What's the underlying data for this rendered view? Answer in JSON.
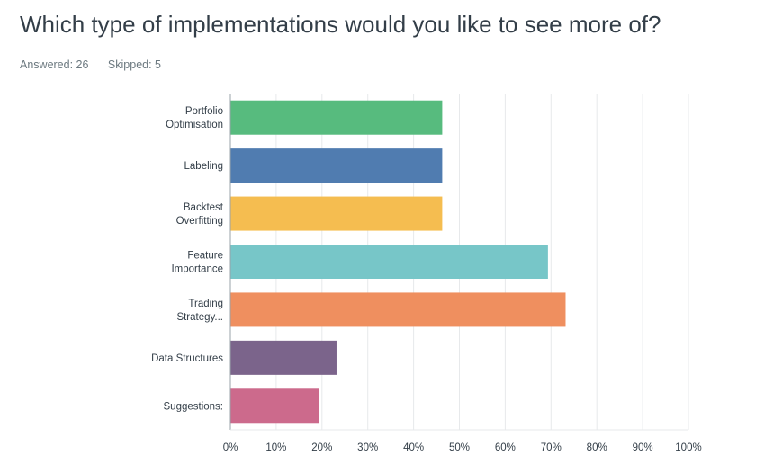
{
  "question": {
    "title": "Which type of implementations would you like to see more of?",
    "answered": "Answered: 26",
    "skipped": "Skipped: 5"
  },
  "chart_data": {
    "type": "bar",
    "orientation": "horizontal",
    "categories": [
      [
        "Portfolio",
        "Optimisation"
      ],
      [
        "Labeling"
      ],
      [
        "Backtest",
        "Overfitting"
      ],
      [
        "Feature",
        "Importance"
      ],
      [
        "Trading",
        "Strategy..."
      ],
      [
        "Data Structures"
      ],
      [
        "Suggestions:"
      ]
    ],
    "values": [
      46.15,
      46.15,
      46.15,
      69.23,
      73.08,
      23.08,
      19.23
    ],
    "colors": [
      "#57bb7e",
      "#507cb0",
      "#f5bd50",
      "#77c6c8",
      "#ef8f5f",
      "#7b648b",
      "#cc6a8c"
    ],
    "xlim": [
      0,
      100
    ],
    "ticks": [
      "0%",
      "10%",
      "20%",
      "30%",
      "40%",
      "50%",
      "60%",
      "70%",
      "80%",
      "90%",
      "100%"
    ],
    "grid": true,
    "title": "",
    "xlabel": "",
    "ylabel": ""
  }
}
